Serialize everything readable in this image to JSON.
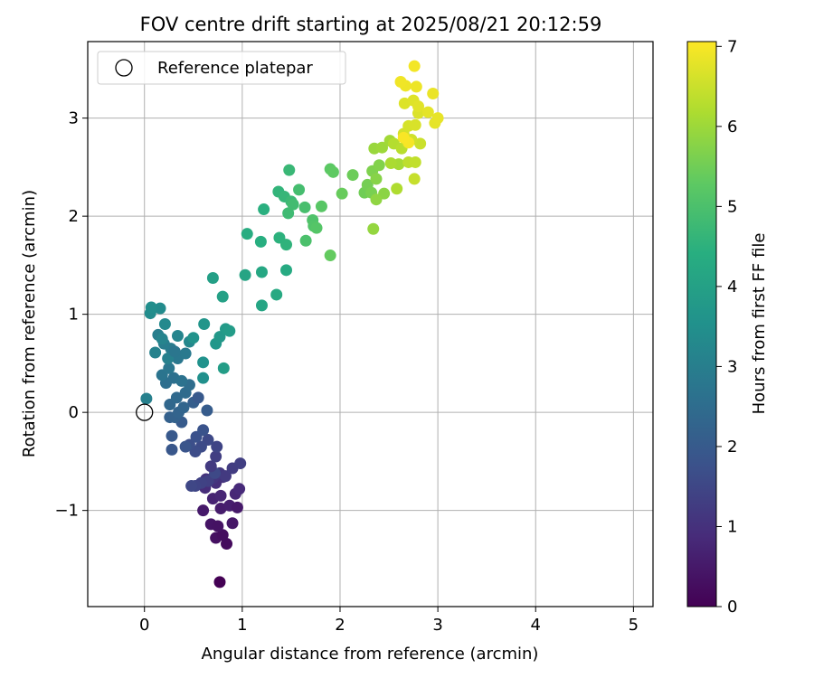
{
  "chart_data": {
    "type": "scatter",
    "title": "FOV centre drift starting at 2025/08/21 20:12:59",
    "xlabel": "Angular distance from reference (arcmin)",
    "ylabel": "Rotation from reference (arcmin)",
    "xlim": [
      -0.58,
      5.2
    ],
    "ylim": [
      -1.98,
      3.78
    ],
    "xticks": [
      "0",
      "1",
      "2",
      "3",
      "4",
      "5"
    ],
    "yticks": [
      "−1",
      "0",
      "1",
      "2",
      "3"
    ],
    "grid": true,
    "legend": {
      "placement": "upper-left",
      "entries": [
        "Reference platepar"
      ]
    },
    "reference_point": {
      "x": 0.0,
      "y": 0.0,
      "marker": "open-circle"
    },
    "colorbar": {
      "label": "Hours from first FF file",
      "min": 0,
      "max": 7.06,
      "ticks": [
        "0",
        "1",
        "2",
        "3",
        "4",
        "5",
        "6",
        "7"
      ],
      "colormap": "viridis"
    },
    "series": [
      {
        "points": [
          [
            0.77,
            -1.73,
            0.0
          ],
          [
            0.84,
            -1.34,
            0.2
          ],
          [
            0.73,
            -1.28,
            0.3
          ],
          [
            0.8,
            -1.25,
            0.25
          ],
          [
            0.68,
            -1.14,
            0.4
          ],
          [
            0.75,
            -1.16,
            0.35
          ],
          [
            0.9,
            -1.13,
            0.45
          ],
          [
            0.6,
            -1.0,
            0.5
          ],
          [
            0.78,
            -0.98,
            0.55
          ],
          [
            0.87,
            -0.95,
            0.6
          ],
          [
            0.95,
            -0.97,
            0.5
          ],
          [
            0.7,
            -0.88,
            0.7
          ],
          [
            0.78,
            -0.85,
            0.75
          ],
          [
            0.93,
            -0.83,
            0.8
          ],
          [
            0.97,
            -0.78,
            0.85
          ],
          [
            0.62,
            -0.77,
            0.9
          ],
          [
            0.73,
            -0.72,
            0.95
          ],
          [
            0.8,
            -0.66,
            1.0
          ],
          [
            0.63,
            -0.68,
            1.05
          ],
          [
            0.7,
            -0.67,
            1.1
          ],
          [
            0.77,
            -0.62,
            1.15
          ],
          [
            0.83,
            -0.65,
            1.2
          ],
          [
            0.9,
            -0.57,
            1.25
          ],
          [
            0.98,
            -0.52,
            1.3
          ],
          [
            0.65,
            -0.7,
            1.35
          ],
          [
            0.58,
            -0.72,
            1.4
          ],
          [
            0.52,
            -0.75,
            1.45
          ],
          [
            0.48,
            -0.75,
            1.5
          ],
          [
            0.72,
            -0.62,
            1.55
          ],
          [
            0.68,
            -0.55,
            1.2
          ],
          [
            0.73,
            -0.45,
            1.3
          ],
          [
            0.74,
            -0.35,
            1.45
          ],
          [
            0.65,
            -0.28,
            1.55
          ],
          [
            0.58,
            -0.35,
            1.6
          ],
          [
            0.52,
            -0.4,
            1.65
          ],
          [
            0.46,
            -0.33,
            1.7
          ],
          [
            0.53,
            -0.25,
            1.75
          ],
          [
            0.6,
            -0.18,
            1.8
          ],
          [
            0.42,
            -0.35,
            1.85
          ],
          [
            0.28,
            -0.38,
            1.9
          ],
          [
            0.28,
            -0.24,
            1.95
          ],
          [
            0.38,
            -0.1,
            2.0
          ],
          [
            0.64,
            0.02,
            2.05
          ],
          [
            0.5,
            0.1,
            2.1
          ],
          [
            0.55,
            0.15,
            1.95
          ],
          [
            0.26,
            -0.05,
            2.15
          ],
          [
            0.31,
            -0.05,
            2.2
          ],
          [
            0.35,
            0.0,
            2.25
          ],
          [
            0.4,
            0.05,
            2.3
          ],
          [
            0.26,
            0.08,
            2.35
          ],
          [
            0.33,
            0.15,
            2.4
          ],
          [
            0.42,
            0.2,
            2.45
          ],
          [
            0.46,
            0.28,
            2.5
          ],
          [
            0.22,
            0.3,
            2.55
          ],
          [
            0.3,
            0.35,
            2.6
          ],
          [
            0.38,
            0.32,
            2.65
          ],
          [
            0.18,
            0.38,
            2.7
          ],
          [
            0.25,
            0.45,
            2.75
          ],
          [
            0.34,
            0.55,
            2.8
          ],
          [
            0.42,
            0.6,
            2.85
          ],
          [
            0.27,
            0.65,
            2.9
          ],
          [
            0.2,
            0.7,
            2.95
          ],
          [
            0.14,
            0.79,
            3.0
          ],
          [
            0.24,
            0.55,
            3.05
          ],
          [
            0.31,
            0.62,
            2.75
          ],
          [
            0.11,
            0.61,
            3.1
          ],
          [
            0.18,
            0.75,
            3.15
          ],
          [
            0.34,
            0.78,
            3.2
          ],
          [
            0.46,
            0.72,
            3.25
          ],
          [
            0.21,
            0.9,
            3.3
          ],
          [
            0.16,
            1.06,
            3.35
          ],
          [
            0.06,
            1.01,
            3.4
          ],
          [
            0.07,
            1.07,
            3.45
          ],
          [
            0.02,
            0.14,
            3.05
          ],
          [
            0.6,
            0.35,
            3.5
          ],
          [
            0.6,
            0.51,
            3.55
          ],
          [
            0.5,
            0.76,
            3.6
          ],
          [
            0.61,
            0.9,
            3.65
          ],
          [
            0.73,
            0.7,
            3.7
          ],
          [
            0.77,
            0.77,
            3.75
          ],
          [
            0.83,
            0.85,
            3.8
          ],
          [
            0.87,
            0.83,
            3.85
          ],
          [
            0.81,
            0.45,
            3.9
          ],
          [
            0.7,
            1.37,
            3.95
          ],
          [
            0.8,
            1.18,
            4.0
          ],
          [
            1.03,
            1.4,
            4.1
          ],
          [
            1.2,
            1.09,
            4.15
          ],
          [
            1.2,
            1.43,
            4.2
          ],
          [
            1.35,
            1.2,
            4.25
          ],
          [
            1.45,
            1.45,
            4.3
          ],
          [
            1.05,
            1.82,
            4.35
          ],
          [
            1.19,
            1.74,
            4.4
          ],
          [
            1.22,
            2.07,
            4.45
          ],
          [
            1.38,
            1.78,
            4.5
          ],
          [
            1.45,
            1.71,
            4.55
          ],
          [
            1.37,
            2.25,
            4.6
          ],
          [
            1.43,
            2.2,
            4.65
          ],
          [
            1.48,
            2.47,
            4.7
          ],
          [
            1.5,
            2.15,
            4.75
          ],
          [
            1.47,
            2.03,
            4.8
          ],
          [
            1.52,
            2.12,
            4.85
          ],
          [
            1.58,
            2.27,
            4.9
          ],
          [
            1.64,
            2.09,
            4.95
          ],
          [
            1.65,
            1.75,
            5.0
          ],
          [
            1.72,
            1.96,
            5.05
          ],
          [
            1.73,
            1.9,
            5.1
          ],
          [
            1.76,
            1.88,
            5.15
          ],
          [
            1.81,
            2.1,
            5.2
          ],
          [
            1.9,
            2.48,
            5.25
          ],
          [
            1.93,
            2.45,
            5.3
          ],
          [
            1.9,
            1.6,
            5.35
          ],
          [
            2.02,
            2.23,
            5.4
          ],
          [
            2.13,
            2.42,
            5.45
          ],
          [
            2.25,
            2.24,
            5.5
          ],
          [
            2.28,
            2.32,
            5.55
          ],
          [
            2.32,
            2.24,
            5.6
          ],
          [
            2.33,
            2.46,
            5.65
          ],
          [
            2.4,
            2.52,
            5.7
          ],
          [
            2.37,
            2.38,
            5.75
          ],
          [
            2.45,
            2.23,
            5.8
          ],
          [
            2.37,
            2.17,
            5.85
          ],
          [
            2.34,
            1.87,
            5.9
          ],
          [
            2.35,
            2.69,
            5.95
          ],
          [
            2.43,
            2.7,
            6.0
          ],
          [
            2.51,
            2.77,
            6.05
          ],
          [
            2.6,
            2.53,
            6.1
          ],
          [
            2.52,
            2.54,
            6.15
          ],
          [
            2.58,
            2.28,
            6.2
          ],
          [
            2.55,
            2.74,
            6.25
          ],
          [
            2.63,
            2.69,
            6.3
          ],
          [
            2.7,
            2.55,
            6.35
          ],
          [
            2.77,
            2.55,
            6.4
          ],
          [
            2.76,
            2.38,
            6.45
          ],
          [
            2.82,
            2.74,
            6.5
          ],
          [
            2.73,
            2.78,
            6.55
          ],
          [
            2.65,
            2.84,
            6.6
          ],
          [
            2.7,
            2.92,
            6.62
          ],
          [
            2.77,
            2.93,
            6.65
          ],
          [
            2.8,
            3.05,
            6.68
          ],
          [
            2.66,
            3.15,
            6.7
          ],
          [
            2.75,
            3.18,
            6.72
          ],
          [
            2.8,
            3.12,
            6.75
          ],
          [
            2.9,
            3.06,
            6.78
          ],
          [
            2.97,
            2.95,
            6.8
          ],
          [
            3.0,
            3.0,
            6.82
          ],
          [
            2.95,
            3.25,
            6.85
          ],
          [
            2.78,
            3.32,
            6.88
          ],
          [
            2.67,
            3.33,
            6.9
          ],
          [
            2.62,
            3.37,
            6.92
          ],
          [
            2.76,
            3.53,
            6.95
          ],
          [
            2.7,
            2.75,
            6.98
          ],
          [
            2.65,
            2.8,
            7.0
          ]
        ]
      }
    ]
  }
}
